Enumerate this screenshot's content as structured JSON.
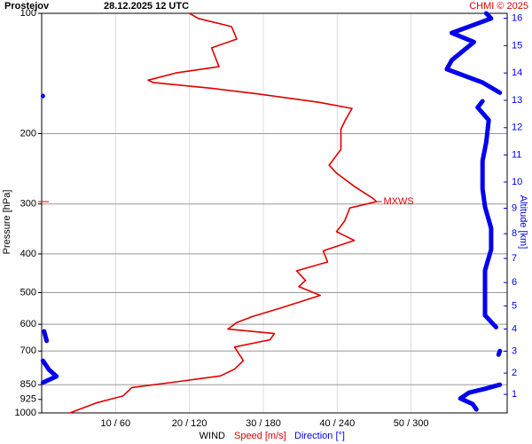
{
  "chart_data": {
    "type": "wind-profile",
    "station": "Prostejov",
    "date": "28.12.2025 12 UTC",
    "credit": "CHMI © 2025",
    "ylabel": "Pressure [hPa]",
    "y2label": "Altitude [km]",
    "xlabel": "WIND",
    "ylim": [
      100,
      1000
    ],
    "log_y": true,
    "yticks": [
      100,
      200,
      300,
      400,
      500,
      600,
      700,
      850,
      925,
      1000
    ],
    "ygrid": [
      200,
      300,
      400,
      500,
      600,
      700,
      850
    ],
    "y2ticks": [
      1,
      2,
      3,
      4,
      5,
      6,
      7,
      8,
      9,
      10,
      11,
      12,
      13,
      14,
      15,
      16
    ],
    "xlim": [
      0,
      63
    ],
    "x2lim": [
      0,
      378
    ],
    "xticks": [
      {
        "value": 10,
        "label": "10 / 60"
      },
      {
        "value": 20,
        "label": "20 / 120"
      },
      {
        "value": 30,
        "label": "30 / 180"
      },
      {
        "value": 40,
        "label": "40 / 240"
      },
      {
        "value": 50,
        "label": "50 / 300"
      }
    ],
    "annotation": {
      "text": "MXWS",
      "pressure": 296,
      "speed": 45.3
    },
    "series": [
      {
        "name": "Speed [m/s]",
        "color": "#e00000",
        "axis": "x",
        "pressure": [
          100,
          103,
          108,
          116,
          122,
          136,
          141,
          147,
          149,
          154,
          159,
          167,
          173,
          185,
          195,
          219,
          240,
          251,
          271,
          291,
          296,
          307,
          331,
          352,
          370,
          393,
          419,
          441,
          466,
          483,
          508,
          546,
          574,
          594,
          617,
          633,
          656,
          684,
          740,
          777,
          808,
          836,
          864,
          907,
          944,
          1000
        ],
        "values": [
          20.0,
          21.2,
          25.7,
          26.4,
          23.0,
          24.0,
          18.2,
          14.4,
          15.1,
          23.0,
          29.1,
          37.5,
          42.0,
          41.1,
          40.5,
          40.5,
          38.9,
          39.9,
          42.3,
          44.9,
          45.3,
          41.7,
          41.0,
          39.9,
          42.3,
          38.1,
          38.7,
          34.5,
          35.7,
          34.8,
          37.7,
          32.4,
          28.5,
          26.4,
          25.2,
          31.5,
          30.9,
          26.1,
          27.3,
          26.1,
          24.2,
          18.2,
          12.2,
          11.0,
          7.4,
          3.8
        ]
      },
      {
        "name": "Direction [°]",
        "color": "#0000ee",
        "axis": "x2",
        "pressure": [
          100,
          103,
          112,
          118,
          131,
          138,
          149,
          158,
          null,
          161,
          null,
          166,
          172,
          185,
          210,
          234,
          275,
          305,
          345,
          390,
          440,
          490,
          570,
          610,
          null,
          625,
          660,
          null,
          700,
          715,
          null,
          740,
          780,
          810,
          840,
          null,
          850,
          870,
          890,
          920,
          950,
          980
        ],
        "values": [
          361,
          365,
          333,
          351,
          333,
          329,
          358,
          372,
          null,
          1,
          null,
          358,
          354,
          363,
          361,
          358,
          358,
          360,
          365,
          365,
          360,
          360,
          360,
          369,
          null,
          2,
          4,
          null,
          372,
          371,
          null,
          1,
          6,
          12,
          1,
          null,
          372,
          360,
          347,
          340,
          350,
          353
        ]
      }
    ]
  }
}
